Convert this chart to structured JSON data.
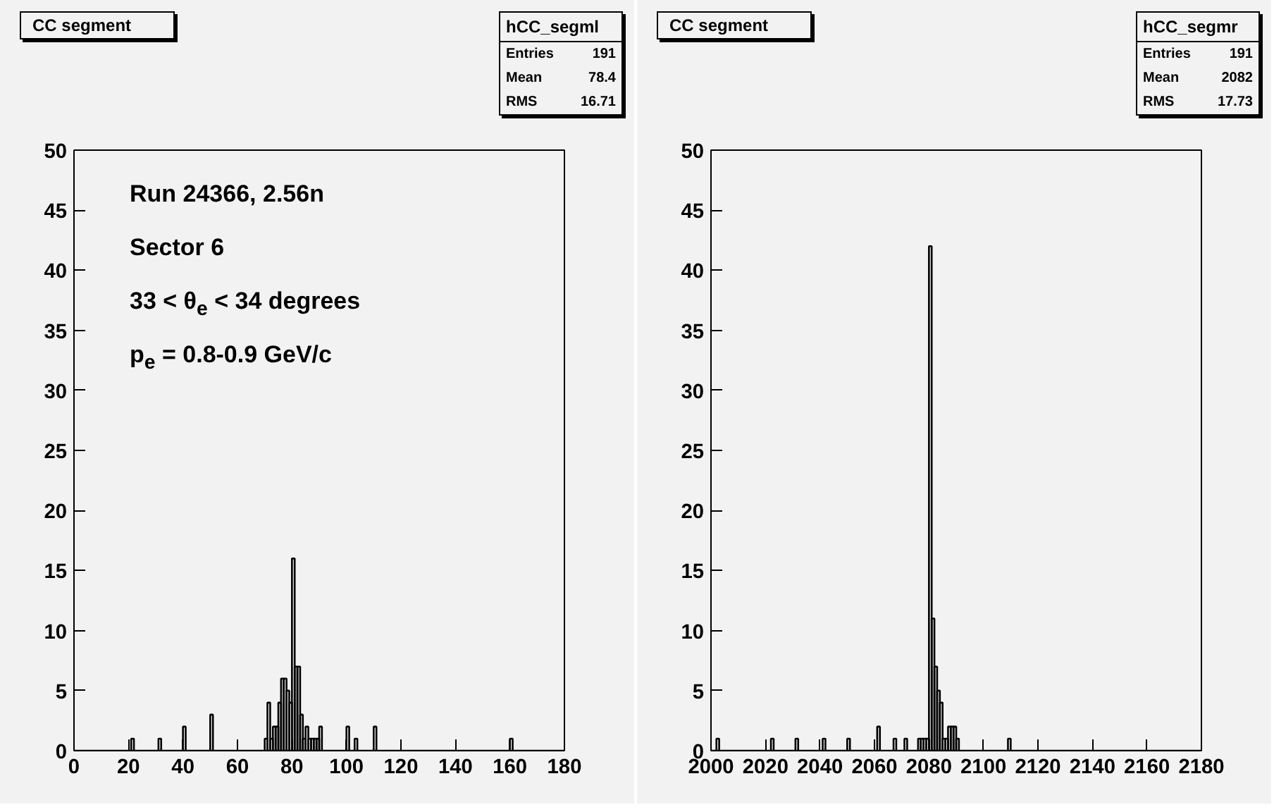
{
  "chart_data": [
    {
      "type": "histogram",
      "title": "CC segment",
      "color": "#000000",
      "annotations": [
        "Run 24366, 2.56n",
        "Sector 6",
        "33 < θ$_{e}$ < 34 degrees",
        "p$_{e}$ = 0.8-0.9 GeV/c",
        "hCC_segml",
        "Entries",
        "191",
        "Mean",
        "78.4",
        "RMS",
        "16.71"
      ],
      "bins": [
        0,
        1,
        2,
        3,
        4,
        5,
        6,
        7,
        8,
        9,
        10,
        11,
        12,
        13,
        14,
        15,
        16,
        17,
        18,
        19,
        20,
        21,
        22,
        23,
        24,
        25,
        26,
        27,
        28,
        29,
        30,
        31,
        32,
        33,
        34,
        35,
        36,
        37,
        38,
        39,
        40,
        41,
        42,
        43,
        44,
        45,
        46,
        47,
        48,
        49,
        50,
        51,
        52,
        53,
        54,
        55,
        56,
        57,
        58,
        59,
        60,
        61,
        62,
        63,
        64,
        65,
        66,
        67,
        68,
        69,
        70,
        71,
        72,
        73,
        74,
        75,
        76,
        77,
        78,
        79,
        80,
        81,
        82,
        83,
        84,
        85,
        86,
        87,
        88,
        89,
        90,
        91,
        92,
        93,
        94,
        95,
        96,
        97,
        98,
        99,
        100,
        101,
        102,
        103,
        104,
        105,
        106,
        107,
        108,
        109,
        110,
        111,
        112,
        113,
        114,
        115,
        116,
        117,
        118,
        119,
        120,
        121,
        122,
        123,
        124,
        125,
        126,
        127,
        128,
        129,
        130,
        131,
        132,
        133,
        134,
        135,
        136,
        137,
        138,
        139,
        140,
        141,
        142,
        143,
        144,
        145,
        146,
        147,
        148,
        149,
        150,
        151,
        152,
        153,
        154,
        155,
        156,
        157,
        158,
        159,
        160,
        161,
        162,
        163,
        164,
        165,
        166,
        167,
        168,
        169,
        170,
        171,
        172,
        173,
        174,
        175,
        176,
        177,
        178,
        179,
        180
      ],
      "values": [
        0,
        0,
        0,
        0,
        0,
        0,
        0,
        0,
        0,
        0,
        0,
        0,
        0,
        0,
        0,
        0,
        0,
        0,
        0,
        0,
        0,
        1,
        0,
        0,
        0,
        0,
        0,
        0,
        0,
        0,
        0,
        1,
        0,
        0,
        0,
        0,
        0,
        0,
        0,
        0,
        2,
        0,
        0,
        0,
        0,
        0,
        0,
        0,
        0,
        0,
        3,
        0,
        0,
        0,
        0,
        0,
        0,
        0,
        0,
        0,
        0,
        0,
        0,
        0,
        0,
        0,
        0,
        0,
        0,
        0,
        1,
        4,
        1,
        2,
        2,
        4,
        6,
        6,
        5,
        4,
        16,
        7,
        7,
        3,
        1,
        2,
        1,
        1,
        1,
        1,
        2,
        0,
        0,
        0,
        0,
        0,
        0,
        0,
        0,
        0,
        2,
        0,
        0,
        1,
        0,
        0,
        0,
        0,
        0,
        0,
        2,
        0,
        0,
        0,
        0,
        0,
        0,
        0,
        0,
        0,
        0,
        0,
        0,
        0,
        0,
        0,
        0,
        0,
        0,
        0,
        0,
        0,
        0,
        0,
        0,
        0,
        0,
        0,
        0,
        0,
        0,
        0,
        0,
        0,
        0,
        0,
        0,
        0,
        0,
        0,
        0,
        0,
        0,
        0,
        0,
        0,
        0,
        0,
        0,
        0,
        1,
        0,
        0,
        0,
        0,
        0,
        0,
        0,
        0,
        0,
        0,
        0,
        0,
        0,
        0,
        0,
        0,
        0,
        0,
        0
      ],
      "xlim": [
        0,
        180
      ],
      "xticks": [
        0,
        20,
        40,
        60,
        80,
        100,
        120,
        140,
        160,
        180
      ],
      "ylim": [
        0,
        50
      ],
      "yticks": [
        0,
        5,
        10,
        15,
        20,
        25,
        30,
        35,
        40,
        45,
        50
      ],
      "grid": false
    },
    {
      "type": "histogram",
      "title": "CC segment",
      "color": "#000000",
      "annotations": [
        "hCC_segmr",
        "Entries",
        "191",
        "Mean",
        "2082",
        "RMS",
        "17.73"
      ],
      "bins": [
        2000,
        2001,
        2002,
        2003,
        2004,
        2005,
        2006,
        2007,
        2008,
        2009,
        2010,
        2011,
        2012,
        2013,
        2014,
        2015,
        2016,
        2017,
        2018,
        2019,
        2020,
        2021,
        2022,
        2023,
        2024,
        2025,
        2026,
        2027,
        2028,
        2029,
        2030,
        2031,
        2032,
        2033,
        2034,
        2035,
        2036,
        2037,
        2038,
        2039,
        2040,
        2041,
        2042,
        2043,
        2044,
        2045,
        2046,
        2047,
        2048,
        2049,
        2050,
        2051,
        2052,
        2053,
        2054,
        2055,
        2056,
        2057,
        2058,
        2059,
        2060,
        2061,
        2062,
        2063,
        2064,
        2065,
        2066,
        2067,
        2068,
        2069,
        2070,
        2071,
        2072,
        2073,
        2074,
        2075,
        2076,
        2077,
        2078,
        2079,
        2080,
        2081,
        2082,
        2083,
        2084,
        2085,
        2086,
        2087,
        2088,
        2089,
        2090,
        2091,
        2092,
        2093,
        2094,
        2095,
        2096,
        2097,
        2098,
        2099,
        2100,
        2101,
        2102,
        2103,
        2104,
        2105,
        2106,
        2107,
        2108,
        2109,
        2110,
        2111,
        2112,
        2113,
        2114,
        2115,
        2116,
        2117,
        2118,
        2119,
        2120,
        2121,
        2122,
        2123,
        2124,
        2125,
        2126,
        2127,
        2128,
        2129,
        2130,
        2131,
        2132,
        2133,
        2134,
        2135,
        2136,
        2137,
        2138,
        2139,
        2140,
        2141,
        2142,
        2143,
        2144,
        2145,
        2146,
        2147,
        2148,
        2149,
        2150,
        2151,
        2152,
        2153,
        2154,
        2155,
        2156,
        2157,
        2158,
        2159,
        2160,
        2161,
        2162,
        2163,
        2164,
        2165,
        2166,
        2167,
        2168,
        2169,
        2170,
        2171,
        2172,
        2173,
        2174,
        2175,
        2176,
        2177,
        2178,
        2179,
        2180
      ],
      "values": [
        0,
        0,
        1,
        0,
        0,
        0,
        0,
        0,
        0,
        0,
        0,
        0,
        0,
        0,
        0,
        0,
        0,
        0,
        0,
        0,
        0,
        0,
        1,
        0,
        0,
        0,
        0,
        0,
        0,
        0,
        0,
        1,
        0,
        0,
        0,
        0,
        0,
        0,
        0,
        0,
        0,
        1,
        0,
        0,
        0,
        0,
        0,
        0,
        0,
        0,
        1,
        0,
        0,
        0,
        0,
        0,
        0,
        0,
        0,
        0,
        0,
        2,
        0,
        0,
        0,
        0,
        0,
        1,
        0,
        0,
        0,
        1,
        0,
        0,
        0,
        0,
        1,
        1,
        1,
        1,
        42,
        11,
        7,
        5,
        4,
        1,
        1,
        2,
        2,
        2,
        1,
        0,
        0,
        0,
        0,
        0,
        0,
        0,
        0,
        0,
        0,
        0,
        0,
        0,
        0,
        0,
        0,
        0,
        0,
        1,
        0,
        0,
        0,
        0,
        0,
        0,
        0,
        0,
        0,
        0,
        0,
        0,
        0,
        0,
        0,
        0,
        0,
        0,
        0,
        0,
        0,
        0,
        0,
        0,
        0,
        0,
        0,
        0,
        0,
        0,
        0,
        0,
        0,
        0,
        0,
        0,
        0,
        0,
        0,
        0,
        0,
        0,
        0,
        0,
        0,
        0,
        0,
        0,
        0,
        0,
        0,
        0,
        0,
        0,
        0,
        0,
        0,
        0,
        0,
        0,
        0,
        0,
        0,
        0,
        0,
        0,
        0,
        0,
        0,
        0
      ],
      "xlim": [
        2000,
        2180
      ],
      "xticks": [
        2000,
        2020,
        2040,
        2060,
        2080,
        2100,
        2120,
        2140,
        2160,
        2180
      ],
      "ylim": [
        0,
        50
      ],
      "yticks": [
        0,
        5,
        10,
        15,
        20,
        25,
        30,
        35,
        40,
        45,
        50
      ],
      "grid": false
    }
  ]
}
